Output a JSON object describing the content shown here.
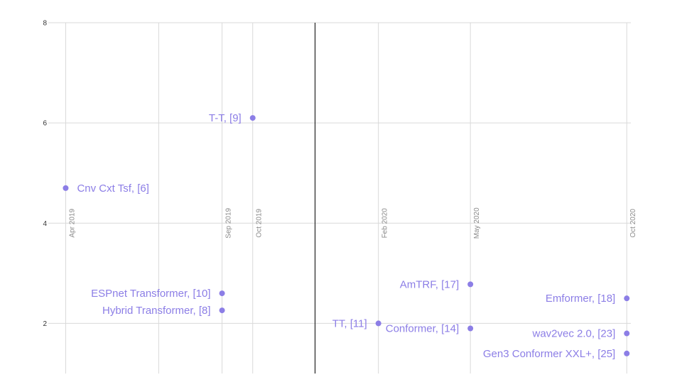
{
  "colors": {
    "point": "#8c7ee6",
    "label": "#8c7ee6",
    "grid": "#d9d9d9",
    "divider": "#222222",
    "tick": "#333333",
    "date_tick": "#8a8a8a"
  },
  "chart_data": {
    "type": "scatter",
    "title": "",
    "xlabel": "",
    "ylabel": "",
    "ylim": [
      1,
      8
    ],
    "xlim": [
      "2019-03-15",
      "2020-10-05"
    ],
    "yticks": [
      2,
      4,
      6,
      8
    ],
    "grid": true,
    "legend": "none",
    "x_ticks": [
      {
        "label": "Apr 2019",
        "date": "2019-04-01"
      },
      {
        "label": "Sep 2019",
        "date": "2019-09-01"
      },
      {
        "label": "Oct 2019",
        "date": "2019-10-01"
      },
      {
        "label": "Feb 2020",
        "date": "2020-02-01"
      },
      {
        "label": "May 2020",
        "date": "2020-05-01"
      },
      {
        "label": "Oct 2020",
        "date": "2020-10-01"
      }
    ],
    "x_gridlines": [
      "2019-04-01",
      "2019-07-01",
      "2019-09-01",
      "2019-10-01",
      "2019-12-01",
      "2020-02-01",
      "2020-05-01",
      "2020-10-01"
    ],
    "divider_date": "2019-12-01",
    "points": [
      {
        "label": "Cnv Cxt Tsf, [6]",
        "date": "2019-04-01",
        "y": 4.7,
        "label_side": "right"
      },
      {
        "label": "T-T, [9]",
        "date": "2019-10-01",
        "y": 6.1,
        "label_side": "left"
      },
      {
        "label": "ESPnet Transformer, [10]",
        "date": "2019-09-01",
        "y": 2.6,
        "label_side": "left"
      },
      {
        "label": "Hybrid Transformer, [8]",
        "date": "2019-09-01",
        "y": 2.26,
        "label_side": "left"
      },
      {
        "label": "TT, [11]",
        "date": "2020-02-01",
        "y": 2.0,
        "label_side": "left"
      },
      {
        "label": "Conformer, [14]",
        "date": "2020-05-01",
        "y": 1.9,
        "label_side": "left"
      },
      {
        "label": "AmTRF, [17]",
        "date": "2020-05-01",
        "y": 2.78,
        "label_side": "left"
      },
      {
        "label": "Emformer, [18]",
        "date": "2020-10-01",
        "y": 2.5,
        "label_side": "left"
      },
      {
        "label": "wav2vec 2.0, [23]",
        "date": "2020-10-01",
        "y": 1.8,
        "label_side": "left"
      },
      {
        "label": "Gen3 Conformer XXL+, [25]",
        "date": "2020-10-01",
        "y": 1.4,
        "label_side": "left"
      }
    ]
  }
}
